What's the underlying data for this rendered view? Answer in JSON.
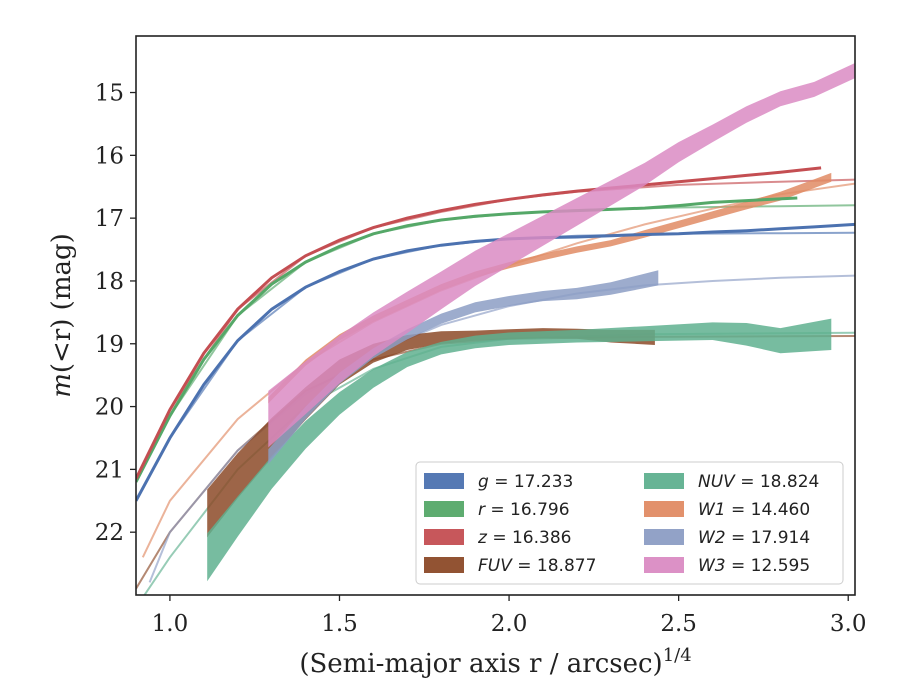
{
  "chart_data": {
    "type": "line",
    "title": "",
    "xlabel": "(Semi-major axis r / arcsec)^1/4",
    "ylabel": "m(<r) (mag)",
    "xlim": [
      0.9,
      3.02
    ],
    "ylim": [
      23.0,
      14.1
    ],
    "y_inverted": true,
    "xticks": [
      "1.0",
      "1.5",
      "2.0",
      "2.5",
      "3.0"
    ],
    "yticks": [
      "15",
      "16",
      "17",
      "18",
      "19",
      "20",
      "21",
      "22"
    ],
    "grid": false,
    "legend_position": "lower-right",
    "legend_columns": 2,
    "series": [
      {
        "name": "g = 17.233",
        "band": "g",
        "color": "#4c72b0",
        "observed_x": [
          0.9,
          1.0,
          1.1,
          1.2,
          1.3,
          1.4,
          1.5,
          1.6,
          1.7,
          1.8,
          1.9,
          2.0,
          2.1,
          2.2,
          2.3,
          2.4,
          2.5,
          2.6,
          2.7,
          2.8,
          2.9,
          3.02
        ],
        "observed_y": [
          21.5,
          20.5,
          19.65,
          18.95,
          18.45,
          18.1,
          17.85,
          17.65,
          17.52,
          17.43,
          17.37,
          17.33,
          17.31,
          17.3,
          17.28,
          17.26,
          17.25,
          17.22,
          17.2,
          17.17,
          17.14,
          17.1
        ],
        "model_x": [
          0.9,
          1.0,
          1.2,
          1.4,
          1.6,
          1.8,
          2.0,
          2.2,
          2.5,
          2.8,
          3.02
        ],
        "model_y": [
          21.5,
          20.5,
          18.95,
          18.1,
          17.65,
          17.43,
          17.33,
          17.28,
          17.25,
          17.24,
          17.233
        ]
      },
      {
        "name": "r = 16.796",
        "band": "r",
        "color": "#55a868",
        "observed_x": [
          0.9,
          1.0,
          1.1,
          1.2,
          1.3,
          1.4,
          1.5,
          1.6,
          1.7,
          1.8,
          1.9,
          2.0,
          2.1,
          2.2,
          2.3,
          2.4,
          2.5,
          2.6,
          2.7,
          2.85
        ],
        "observed_y": [
          21.2,
          20.15,
          19.25,
          18.55,
          18.05,
          17.7,
          17.45,
          17.25,
          17.12,
          17.03,
          16.97,
          16.93,
          16.9,
          16.88,
          16.86,
          16.84,
          16.8,
          16.75,
          16.72,
          16.68
        ],
        "model_x": [
          0.9,
          1.0,
          1.2,
          1.4,
          1.6,
          1.8,
          2.0,
          2.2,
          2.5,
          2.8,
          3.02
        ],
        "model_y": [
          21.2,
          20.15,
          18.55,
          17.7,
          17.25,
          17.03,
          16.93,
          16.87,
          16.83,
          16.81,
          16.796
        ]
      },
      {
        "name": "z = 16.386",
        "band": "z",
        "color": "#c44e52",
        "observed_x": [
          0.9,
          1.0,
          1.1,
          1.2,
          1.3,
          1.4,
          1.5,
          1.6,
          1.7,
          1.8,
          1.9,
          2.0,
          2.1,
          2.2,
          2.3,
          2.4,
          2.5,
          2.6,
          2.7,
          2.8,
          2.92
        ],
        "observed_y": [
          21.15,
          20.05,
          19.15,
          18.45,
          17.95,
          17.6,
          17.35,
          17.15,
          17.0,
          16.88,
          16.78,
          16.7,
          16.63,
          16.57,
          16.52,
          16.47,
          16.42,
          16.37,
          16.32,
          16.27,
          16.2
        ],
        "model_x": [
          0.9,
          1.0,
          1.2,
          1.4,
          1.6,
          1.8,
          2.0,
          2.2,
          2.5,
          2.8,
          3.02
        ],
        "model_y": [
          21.15,
          20.05,
          18.45,
          17.6,
          17.15,
          16.9,
          16.7,
          16.58,
          16.47,
          16.42,
          16.386
        ]
      },
      {
        "name": "FUV = 18.877",
        "band": "FUV",
        "color": "#8c4a28",
        "observed_x": [
          1.11,
          1.2,
          1.3,
          1.4,
          1.5,
          1.6,
          1.7,
          1.8,
          1.9,
          2.0,
          2.1,
          2.2,
          2.3,
          2.43
        ],
        "observed_y": [
          21.7,
          21.1,
          20.5,
          19.95,
          19.45,
          19.15,
          18.98,
          18.9,
          18.87,
          18.85,
          18.83,
          18.84,
          18.88,
          18.9
        ],
        "observed_halfwidth": [
          0.38,
          0.36,
          0.32,
          0.26,
          0.2,
          0.15,
          0.12,
          0.1,
          0.08,
          0.08,
          0.08,
          0.08,
          0.1,
          0.12
        ],
        "model_x": [
          0.9,
          1.0,
          1.2,
          1.4,
          1.6,
          1.8,
          2.0,
          2.4,
          3.02
        ],
        "model_y": [
          22.9,
          22.0,
          20.7,
          19.75,
          19.25,
          19.0,
          18.92,
          18.89,
          18.877
        ]
      },
      {
        "name": "NUV = 18.824",
        "band": "NUV",
        "color": "#5fb08f",
        "observed_x": [
          1.11,
          1.2,
          1.3,
          1.4,
          1.5,
          1.6,
          1.7,
          1.8,
          1.9,
          2.0,
          2.2,
          2.4,
          2.6,
          2.7,
          2.8,
          2.95
        ],
        "observed_y": [
          22.4,
          21.75,
          21.05,
          20.45,
          19.95,
          19.55,
          19.25,
          19.07,
          18.97,
          18.92,
          18.88,
          18.84,
          18.8,
          18.85,
          18.95,
          18.85
        ],
        "observed_halfwidth": [
          0.38,
          0.32,
          0.26,
          0.22,
          0.18,
          0.15,
          0.12,
          0.1,
          0.1,
          0.1,
          0.1,
          0.12,
          0.14,
          0.18,
          0.2,
          0.25
        ],
        "model_x": [
          0.9,
          1.0,
          1.2,
          1.4,
          1.6,
          1.8,
          2.0,
          2.4,
          3.02
        ],
        "model_y": [
          23.2,
          22.4,
          21.0,
          20.0,
          19.4,
          19.05,
          18.92,
          18.85,
          18.824
        ]
      },
      {
        "name": "W1 = 14.460",
        "band": "W1",
        "color": "#e08b64",
        "observed_x": [
          1.29,
          1.4,
          1.5,
          1.6,
          1.7,
          1.8,
          1.9,
          2.0,
          2.1,
          2.2,
          2.3,
          2.4,
          2.5,
          2.6,
          2.7,
          2.8,
          2.9,
          2.95
        ],
        "observed_y": [
          19.9,
          19.3,
          18.9,
          18.6,
          18.35,
          18.1,
          17.9,
          17.75,
          17.62,
          17.5,
          17.4,
          17.25,
          17.1,
          16.95,
          16.8,
          16.65,
          16.45,
          16.35
        ],
        "observed_halfwidth": [
          0.05,
          0.05,
          0.05,
          0.05,
          0.05,
          0.05,
          0.05,
          0.05,
          0.05,
          0.05,
          0.05,
          0.06,
          0.06,
          0.06,
          0.06,
          0.07,
          0.07,
          0.07
        ],
        "model_x": [
          0.92,
          1.0,
          1.2,
          1.4,
          1.6,
          1.8,
          2.0,
          2.2,
          2.4,
          2.6,
          2.8,
          3.02
        ],
        "model_y": [
          22.4,
          21.5,
          20.2,
          19.3,
          18.65,
          18.15,
          17.75,
          17.4,
          17.1,
          16.85,
          16.62,
          16.45
        ]
      },
      {
        "name": "W2 = 17.914",
        "band": "W2",
        "color": "#8c9dc4",
        "observed_x": [
          1.29,
          1.4,
          1.5,
          1.6,
          1.7,
          1.8,
          1.9,
          2.0,
          2.1,
          2.2,
          2.3,
          2.44
        ],
        "observed_y": [
          20.8,
          20.1,
          19.55,
          19.15,
          18.85,
          18.6,
          18.42,
          18.32,
          18.24,
          18.2,
          18.12,
          17.95
        ],
        "observed_halfwidth": [
          0.12,
          0.1,
          0.09,
          0.08,
          0.08,
          0.08,
          0.08,
          0.08,
          0.08,
          0.09,
          0.1,
          0.12
        ],
        "model_x": [
          0.94,
          1.0,
          1.2,
          1.4,
          1.6,
          1.8,
          2.0,
          2.2,
          2.4,
          2.6,
          2.8,
          3.02
        ],
        "model_y": [
          22.8,
          22.0,
          20.7,
          19.8,
          19.15,
          18.7,
          18.4,
          18.2,
          18.07,
          18.0,
          17.95,
          17.914
        ]
      },
      {
        "name": "W3 = 12.595",
        "band": "W3",
        "color": "#da8bc3",
        "observed_x": [
          1.29,
          1.4,
          1.5,
          1.6,
          1.7,
          1.8,
          1.9,
          2.0,
          2.1,
          2.2,
          2.3,
          2.4,
          2.5,
          2.6,
          2.7,
          2.8,
          2.9,
          3.02
        ],
        "observed_y": [
          20.2,
          19.7,
          19.25,
          18.85,
          18.5,
          18.15,
          17.8,
          17.5,
          17.2,
          16.9,
          16.6,
          16.3,
          15.95,
          15.65,
          15.35,
          15.1,
          14.95,
          14.65
        ],
        "observed_halfwidth": [
          0.45,
          0.42,
          0.38,
          0.35,
          0.33,
          0.3,
          0.28,
          0.26,
          0.24,
          0.22,
          0.2,
          0.18,
          0.16,
          0.14,
          0.13,
          0.12,
          0.12,
          0.12
        ],
        "model_x": [],
        "model_y": []
      }
    ]
  }
}
